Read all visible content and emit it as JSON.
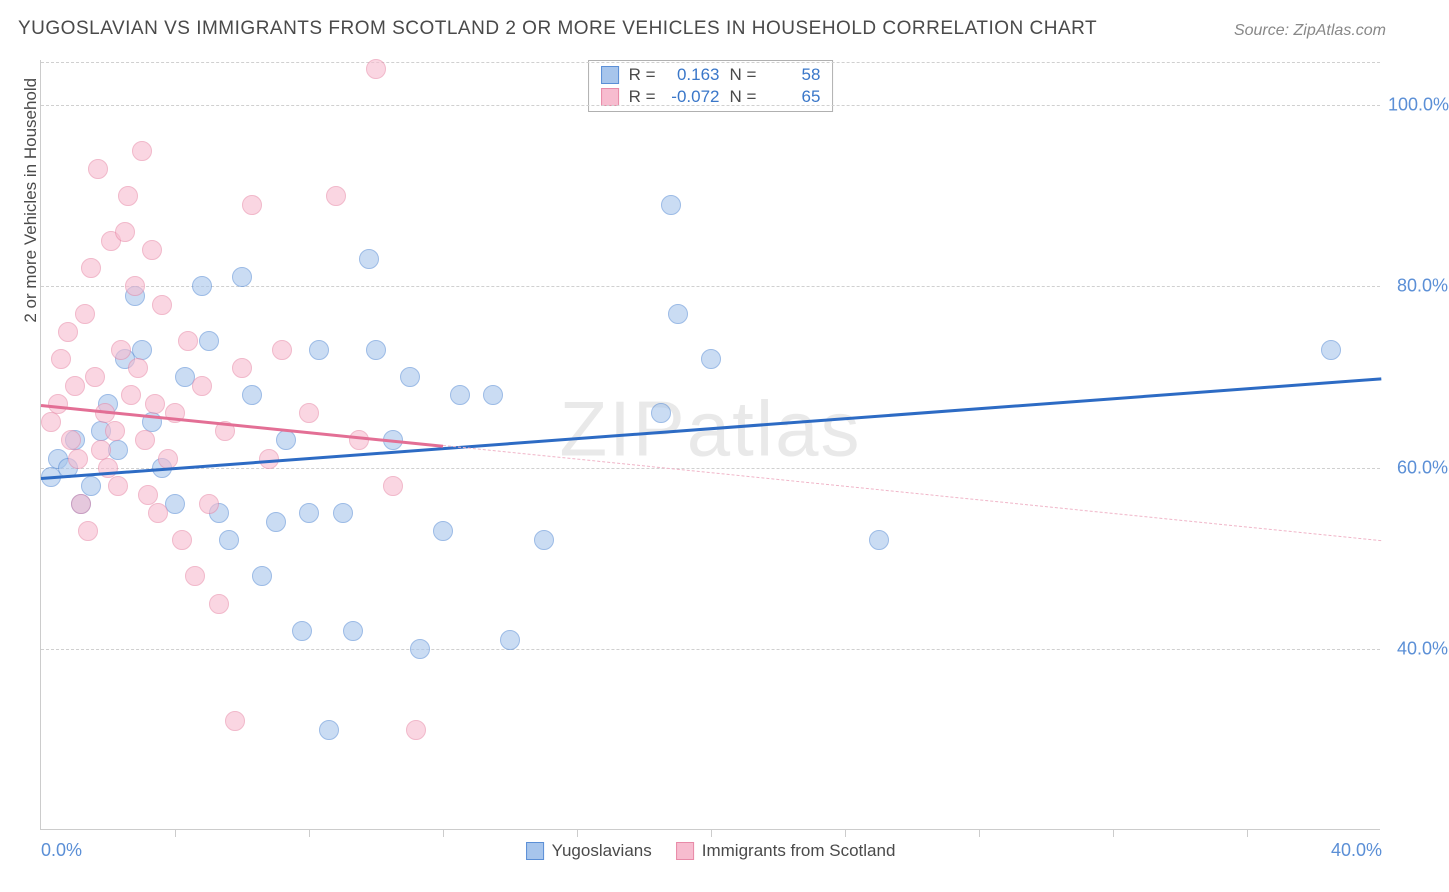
{
  "title": "YUGOSLAVIAN VS IMMIGRANTS FROM SCOTLAND 2 OR MORE VEHICLES IN HOUSEHOLD CORRELATION CHART",
  "source": "Source: ZipAtlas.com",
  "watermark": "ZIPatlas",
  "y_axis_title": "2 or more Vehicles in Household",
  "chart": {
    "type": "scatter",
    "xlim": [
      0,
      40
    ],
    "ylim": [
      20,
      105
    ],
    "x_ticks_labeled": [
      0,
      40
    ],
    "x_minor_ticks": [
      4,
      8,
      12,
      16,
      20,
      24,
      28,
      32,
      36
    ],
    "y_ticks": [
      40,
      60,
      80,
      100
    ],
    "y_tick_labels": [
      "40.0%",
      "60.0%",
      "80.0%",
      "100.0%"
    ],
    "x_tick_labels": [
      "0.0%",
      "40.0%"
    ],
    "grid_color": "#d0d0d0",
    "background_color": "#ffffff",
    "point_radius": 10,
    "point_opacity": 0.35,
    "series": [
      {
        "name": "Yugoslavians",
        "fill_color": "#a7c5ec",
        "stroke_color": "#5b8fd6",
        "R": "0.163",
        "N": "58",
        "trend": {
          "x1": 0,
          "y1": 59,
          "x2": 40,
          "y2": 70,
          "color": "#2d6bc4",
          "width": 3,
          "style": "solid"
        },
        "points": [
          [
            0.3,
            59
          ],
          [
            0.5,
            61
          ],
          [
            0.8,
            60
          ],
          [
            1.0,
            63
          ],
          [
            1.2,
            56
          ],
          [
            1.5,
            58
          ],
          [
            1.8,
            64
          ],
          [
            2.0,
            67
          ],
          [
            2.3,
            62
          ],
          [
            2.5,
            72
          ],
          [
            2.8,
            79
          ],
          [
            3.0,
            73
          ],
          [
            3.3,
            65
          ],
          [
            3.6,
            60
          ],
          [
            4.0,
            56
          ],
          [
            4.3,
            70
          ],
          [
            4.8,
            80
          ],
          [
            5.0,
            74
          ],
          [
            5.3,
            55
          ],
          [
            5.6,
            52
          ],
          [
            6.0,
            81
          ],
          [
            6.3,
            68
          ],
          [
            6.6,
            48
          ],
          [
            7.0,
            54
          ],
          [
            7.3,
            63
          ],
          [
            7.8,
            42
          ],
          [
            8.0,
            55
          ],
          [
            8.3,
            73
          ],
          [
            8.6,
            31
          ],
          [
            9.0,
            55
          ],
          [
            9.3,
            42
          ],
          [
            9.8,
            83
          ],
          [
            10.0,
            73
          ],
          [
            10.5,
            63
          ],
          [
            11.0,
            70
          ],
          [
            11.3,
            40
          ],
          [
            12.0,
            53
          ],
          [
            12.5,
            68
          ],
          [
            13.5,
            68
          ],
          [
            14.0,
            41
          ],
          [
            15.0,
            52
          ],
          [
            18.5,
            66
          ],
          [
            18.8,
            89
          ],
          [
            19.0,
            77
          ],
          [
            20.0,
            72
          ],
          [
            25.0,
            52
          ],
          [
            38.5,
            73
          ]
        ]
      },
      {
        "name": "Immigrants from Scotland",
        "fill_color": "#f7bccf",
        "stroke_color": "#e88aa8",
        "R": "-0.072",
        "N": "65",
        "trend_solid": {
          "x1": 0,
          "y1": 67,
          "x2": 12,
          "y2": 62.5,
          "color": "#e36f95",
          "width": 3,
          "style": "solid"
        },
        "trend_dashed": {
          "x1": 12,
          "y1": 62.5,
          "x2": 40,
          "y2": 52,
          "color": "#f0b5c8",
          "width": 1,
          "style": "dashed"
        },
        "points": [
          [
            0.3,
            65
          ],
          [
            0.5,
            67
          ],
          [
            0.6,
            72
          ],
          [
            0.8,
            75
          ],
          [
            0.9,
            63
          ],
          [
            1.0,
            69
          ],
          [
            1.1,
            61
          ],
          [
            1.2,
            56
          ],
          [
            1.3,
            77
          ],
          [
            1.4,
            53
          ],
          [
            1.5,
            82
          ],
          [
            1.6,
            70
          ],
          [
            1.7,
            93
          ],
          [
            1.8,
            62
          ],
          [
            1.9,
            66
          ],
          [
            2.0,
            60
          ],
          [
            2.1,
            85
          ],
          [
            2.2,
            64
          ],
          [
            2.3,
            58
          ],
          [
            2.4,
            73
          ],
          [
            2.5,
            86
          ],
          [
            2.6,
            90
          ],
          [
            2.7,
            68
          ],
          [
            2.8,
            80
          ],
          [
            2.9,
            71
          ],
          [
            3.0,
            95
          ],
          [
            3.1,
            63
          ],
          [
            3.2,
            57
          ],
          [
            3.3,
            84
          ],
          [
            3.4,
            67
          ],
          [
            3.5,
            55
          ],
          [
            3.6,
            78
          ],
          [
            3.8,
            61
          ],
          [
            4.0,
            66
          ],
          [
            4.2,
            52
          ],
          [
            4.4,
            74
          ],
          [
            4.6,
            48
          ],
          [
            4.8,
            69
          ],
          [
            5.0,
            56
          ],
          [
            5.3,
            45
          ],
          [
            5.5,
            64
          ],
          [
            5.8,
            32
          ],
          [
            6.0,
            71
          ],
          [
            6.3,
            89
          ],
          [
            6.8,
            61
          ],
          [
            7.2,
            73
          ],
          [
            8.0,
            66
          ],
          [
            8.8,
            90
          ],
          [
            9.5,
            63
          ],
          [
            10.0,
            104
          ],
          [
            10.5,
            58
          ],
          [
            11.2,
            31
          ]
        ]
      }
    ]
  },
  "legend_bottom": [
    {
      "label": "Yugoslavians",
      "fill": "#a7c5ec",
      "stroke": "#5b8fd6"
    },
    {
      "label": "Immigrants from Scotland",
      "fill": "#f7bccf",
      "stroke": "#e88aa8"
    }
  ]
}
